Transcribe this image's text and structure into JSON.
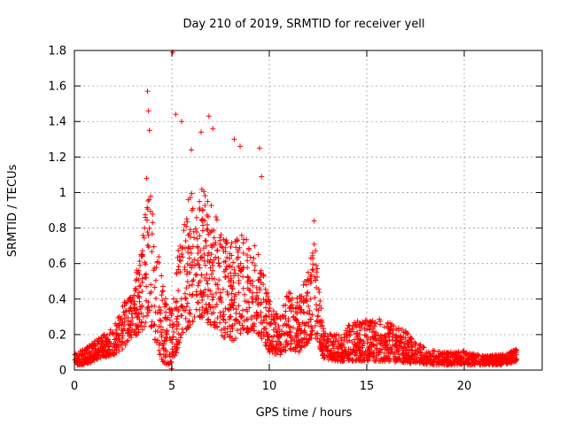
{
  "chart_data": {
    "type": "scatter",
    "title": "Day 210 of 2019, SRMTID for receiver yell",
    "xlabel": "GPS time / hours",
    "ylabel": "SRMTID / TECUs",
    "xlim": [
      0,
      24
    ],
    "ylim": [
      0,
      1.8
    ],
    "xticks": [
      0,
      5,
      10,
      15,
      20
    ],
    "xtick_labels": [
      "0",
      "5",
      "10",
      "15",
      "20"
    ],
    "yticks": [
      0,
      0.2,
      0.4,
      0.6,
      0.8,
      1.0,
      1.2,
      1.4,
      1.6,
      1.8
    ],
    "ytick_labels": [
      "0",
      "0.2",
      "0.4",
      "0.6",
      "0.8",
      "1",
      "1.2",
      "1.4",
      "1.6",
      "1.8"
    ],
    "grid": true,
    "marker": "+",
    "color": "#ff0000",
    "envelope_note": "Dense point cloud; piecewise x (hours) vs typical y range (TECUs) with notable peaks",
    "envelope": [
      {
        "x": 0.0,
        "ymin": 0.03,
        "ymax": 0.09
      },
      {
        "x": 0.5,
        "ymin": 0.03,
        "ymax": 0.12
      },
      {
        "x": 1.0,
        "ymin": 0.05,
        "ymax": 0.16
      },
      {
        "x": 1.5,
        "ymin": 0.07,
        "ymax": 0.2
      },
      {
        "x": 2.0,
        "ymin": 0.08,
        "ymax": 0.24
      },
      {
        "x": 2.5,
        "ymin": 0.12,
        "ymax": 0.38
      },
      {
        "x": 3.0,
        "ymin": 0.18,
        "ymax": 0.45
      },
      {
        "x": 3.5,
        "ymin": 0.22,
        "ymax": 0.75
      },
      {
        "x": 3.8,
        "ymin": 0.3,
        "ymax": 1.05
      },
      {
        "x": 4.0,
        "ymin": 0.2,
        "ymax": 0.95
      },
      {
        "x": 4.5,
        "ymin": 0.05,
        "ymax": 0.5
      },
      {
        "x": 5.0,
        "ymin": 0.0,
        "ymax": 0.35
      },
      {
        "x": 5.5,
        "ymin": 0.2,
        "ymax": 0.9
      },
      {
        "x": 6.0,
        "ymin": 0.25,
        "ymax": 1.0
      },
      {
        "x": 6.5,
        "ymin": 0.3,
        "ymax": 1.05
      },
      {
        "x": 7.0,
        "ymin": 0.25,
        "ymax": 0.95
      },
      {
        "x": 7.5,
        "ymin": 0.2,
        "ymax": 0.8
      },
      {
        "x": 8.0,
        "ymin": 0.15,
        "ymax": 0.7
      },
      {
        "x": 8.5,
        "ymin": 0.2,
        "ymax": 0.85
      },
      {
        "x": 9.0,
        "ymin": 0.2,
        "ymax": 0.75
      },
      {
        "x": 9.5,
        "ymin": 0.2,
        "ymax": 0.65
      },
      {
        "x": 10.0,
        "ymin": 0.1,
        "ymax": 0.4
      },
      {
        "x": 10.5,
        "ymin": 0.08,
        "ymax": 0.3
      },
      {
        "x": 11.0,
        "ymin": 0.12,
        "ymax": 0.45
      },
      {
        "x": 11.5,
        "ymin": 0.1,
        "ymax": 0.4
      },
      {
        "x": 12.0,
        "ymin": 0.15,
        "ymax": 0.6
      },
      {
        "x": 12.3,
        "ymin": 0.2,
        "ymax": 0.75
      },
      {
        "x": 12.8,
        "ymin": 0.06,
        "ymax": 0.22
      },
      {
        "x": 13.5,
        "ymin": 0.05,
        "ymax": 0.2
      },
      {
        "x": 14.0,
        "ymin": 0.05,
        "ymax": 0.25
      },
      {
        "x": 15.0,
        "ymin": 0.05,
        "ymax": 0.3
      },
      {
        "x": 16.0,
        "ymin": 0.05,
        "ymax": 0.28
      },
      {
        "x": 17.0,
        "ymin": 0.04,
        "ymax": 0.22
      },
      {
        "x": 18.0,
        "ymin": 0.03,
        "ymax": 0.12
      },
      {
        "x": 19.0,
        "ymin": 0.03,
        "ymax": 0.1
      },
      {
        "x": 20.0,
        "ymin": 0.03,
        "ymax": 0.11
      },
      {
        "x": 21.0,
        "ymin": 0.03,
        "ymax": 0.08
      },
      {
        "x": 22.0,
        "ymin": 0.03,
        "ymax": 0.09
      },
      {
        "x": 22.7,
        "ymin": 0.05,
        "ymax": 0.12
      }
    ],
    "peaks": [
      {
        "x": 3.75,
        "y": 1.57
      },
      {
        "x": 3.8,
        "y": 1.46
      },
      {
        "x": 3.85,
        "y": 1.35
      },
      {
        "x": 3.7,
        "y": 1.08
      },
      {
        "x": 5.05,
        "y": 1.79
      },
      {
        "x": 5.2,
        "y": 1.44
      },
      {
        "x": 5.5,
        "y": 1.4
      },
      {
        "x": 6.0,
        "y": 1.24
      },
      {
        "x": 6.5,
        "y": 1.34
      },
      {
        "x": 6.9,
        "y": 1.43
      },
      {
        "x": 7.1,
        "y": 1.36
      },
      {
        "x": 8.2,
        "y": 1.3
      },
      {
        "x": 8.5,
        "y": 1.26
      },
      {
        "x": 9.5,
        "y": 1.25
      },
      {
        "x": 9.6,
        "y": 1.09
      },
      {
        "x": 12.3,
        "y": 0.84
      }
    ]
  }
}
